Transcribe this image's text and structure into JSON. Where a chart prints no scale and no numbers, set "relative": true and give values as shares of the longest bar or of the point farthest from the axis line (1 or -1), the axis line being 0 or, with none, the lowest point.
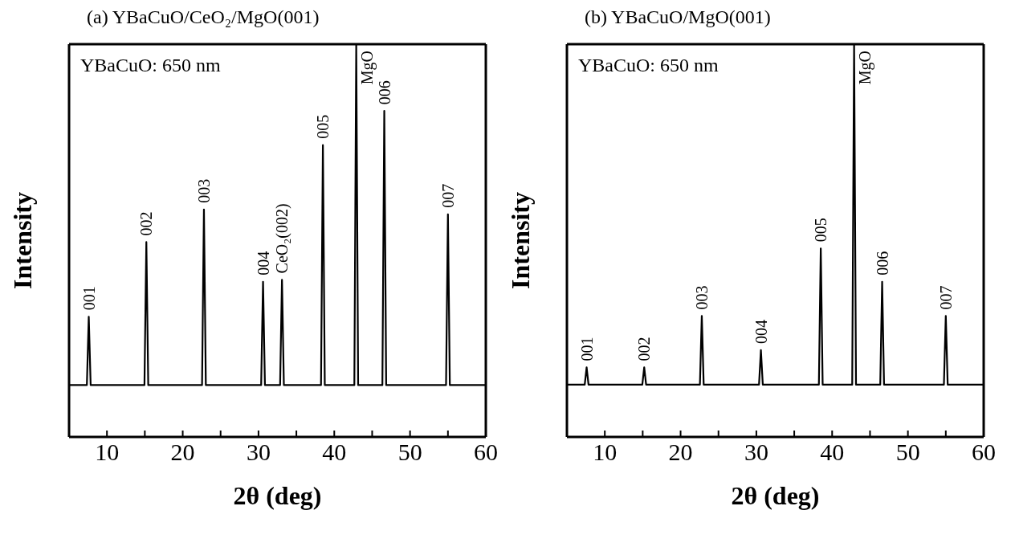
{
  "chart_data": [
    {
      "type": "line",
      "title": "(a) YBaCuO/CeO₂/MgO(001)",
      "xlabel": "2θ (deg)",
      "ylabel": "Intensity",
      "relative": true,
      "color": "#000000",
      "x": [
        5,
        7.35,
        7.6,
        7.85,
        14.95,
        15.2,
        15.45,
        22.55,
        22.8,
        23.05,
        30.35,
        30.6,
        30.85,
        32.85,
        33.1,
        33.35,
        38.25,
        38.5,
        38.75,
        42.65,
        42.9,
        43.15,
        46.35,
        46.6,
        46.85,
        54.75,
        55.0,
        55.25,
        60
      ],
      "values": [
        0.132,
        0.132,
        0.306,
        0.132,
        0.132,
        0.496,
        0.132,
        0.132,
        0.579,
        0.132,
        0.132,
        0.395,
        0.132,
        0.132,
        0.4,
        0.132,
        0.132,
        0.743,
        0.132,
        0.132,
        1,
        0.132,
        0.132,
        0.83,
        0.132,
        0.132,
        0.567,
        0.132,
        0.132
      ],
      "xlim": [
        5,
        60
      ],
      "xticks": [
        10,
        {
          "value": 15,
          "label": null
        },
        20,
        {
          "value": 25,
          "label": null
        },
        30,
        {
          "value": 35,
          "label": null
        },
        40,
        {
          "value": 45,
          "label": null
        },
        50,
        {
          "value": 55,
          "label": null
        },
        60
      ],
      "annotations": [
        "YBaCuO: 650 nm",
        {
          "text": "001",
          "x": 7.6,
          "y": 0.306
        },
        {
          "text": "002",
          "x": 15.2,
          "y": 0.496
        },
        {
          "text": "003",
          "x": 22.8,
          "y": 0.579
        },
        {
          "text": "004",
          "x": 30.6,
          "y": 0.395
        },
        {
          "text": "CeO₂(002)",
          "x": 33.1,
          "y": 0.4
        },
        {
          "text": "005",
          "x": 38.5,
          "y": 0.743
        },
        {
          "text": "MgO",
          "x": 42.9,
          "y": 1
        },
        {
          "text": "006",
          "x": 46.6,
          "y": 0.83
        },
        {
          "text": "007",
          "x": 55.0,
          "y": 0.567
        }
      ]
    },
    {
      "type": "line",
      "title": "(b) YBaCuO/MgO(001)",
      "xlabel": "2θ (deg)",
      "ylabel": "Intensity",
      "relative": true,
      "color": "#000000",
      "x": [
        5,
        7.35,
        7.6,
        7.85,
        14.95,
        15.2,
        15.45,
        22.55,
        22.8,
        23.05,
        30.35,
        30.6,
        30.85,
        38.25,
        38.5,
        38.75,
        42.65,
        42.9,
        43.15,
        46.35,
        46.6,
        46.85,
        54.75,
        55.0,
        55.25,
        60
      ],
      "values": [
        0.133,
        0.133,
        0.177,
        0.133,
        0.133,
        0.177,
        0.133,
        0.133,
        0.308,
        0.133,
        0.133,
        0.221,
        0.133,
        0.133,
        0.48,
        0.133,
        0.133,
        1,
        0.133,
        0.133,
        0.395,
        0.133,
        0.133,
        0.308,
        0.133,
        0.133
      ],
      "xlim": [
        5,
        60
      ],
      "xticks": [
        10,
        {
          "value": 15,
          "label": null
        },
        20,
        {
          "value": 25,
          "label": null
        },
        30,
        {
          "value": 35,
          "label": null
        },
        40,
        {
          "value": 45,
          "label": null
        },
        50,
        {
          "value": 55,
          "label": null
        },
        60
      ],
      "annotations": [
        "YBaCuO: 650 nm",
        {
          "text": "001",
          "x": 7.6,
          "y": 0.177
        },
        {
          "text": "002",
          "x": 15.2,
          "y": 0.177
        },
        {
          "text": "003",
          "x": 22.8,
          "y": 0.308
        },
        {
          "text": "004",
          "x": 30.6,
          "y": 0.221
        },
        {
          "text": "005",
          "x": 38.5,
          "y": 0.48
        },
        {
          "text": "MgO",
          "x": 42.9,
          "y": 1
        },
        {
          "text": "006",
          "x": 46.6,
          "y": 0.395
        },
        {
          "text": "007",
          "x": 55.0,
          "y": 0.308
        }
      ]
    }
  ]
}
